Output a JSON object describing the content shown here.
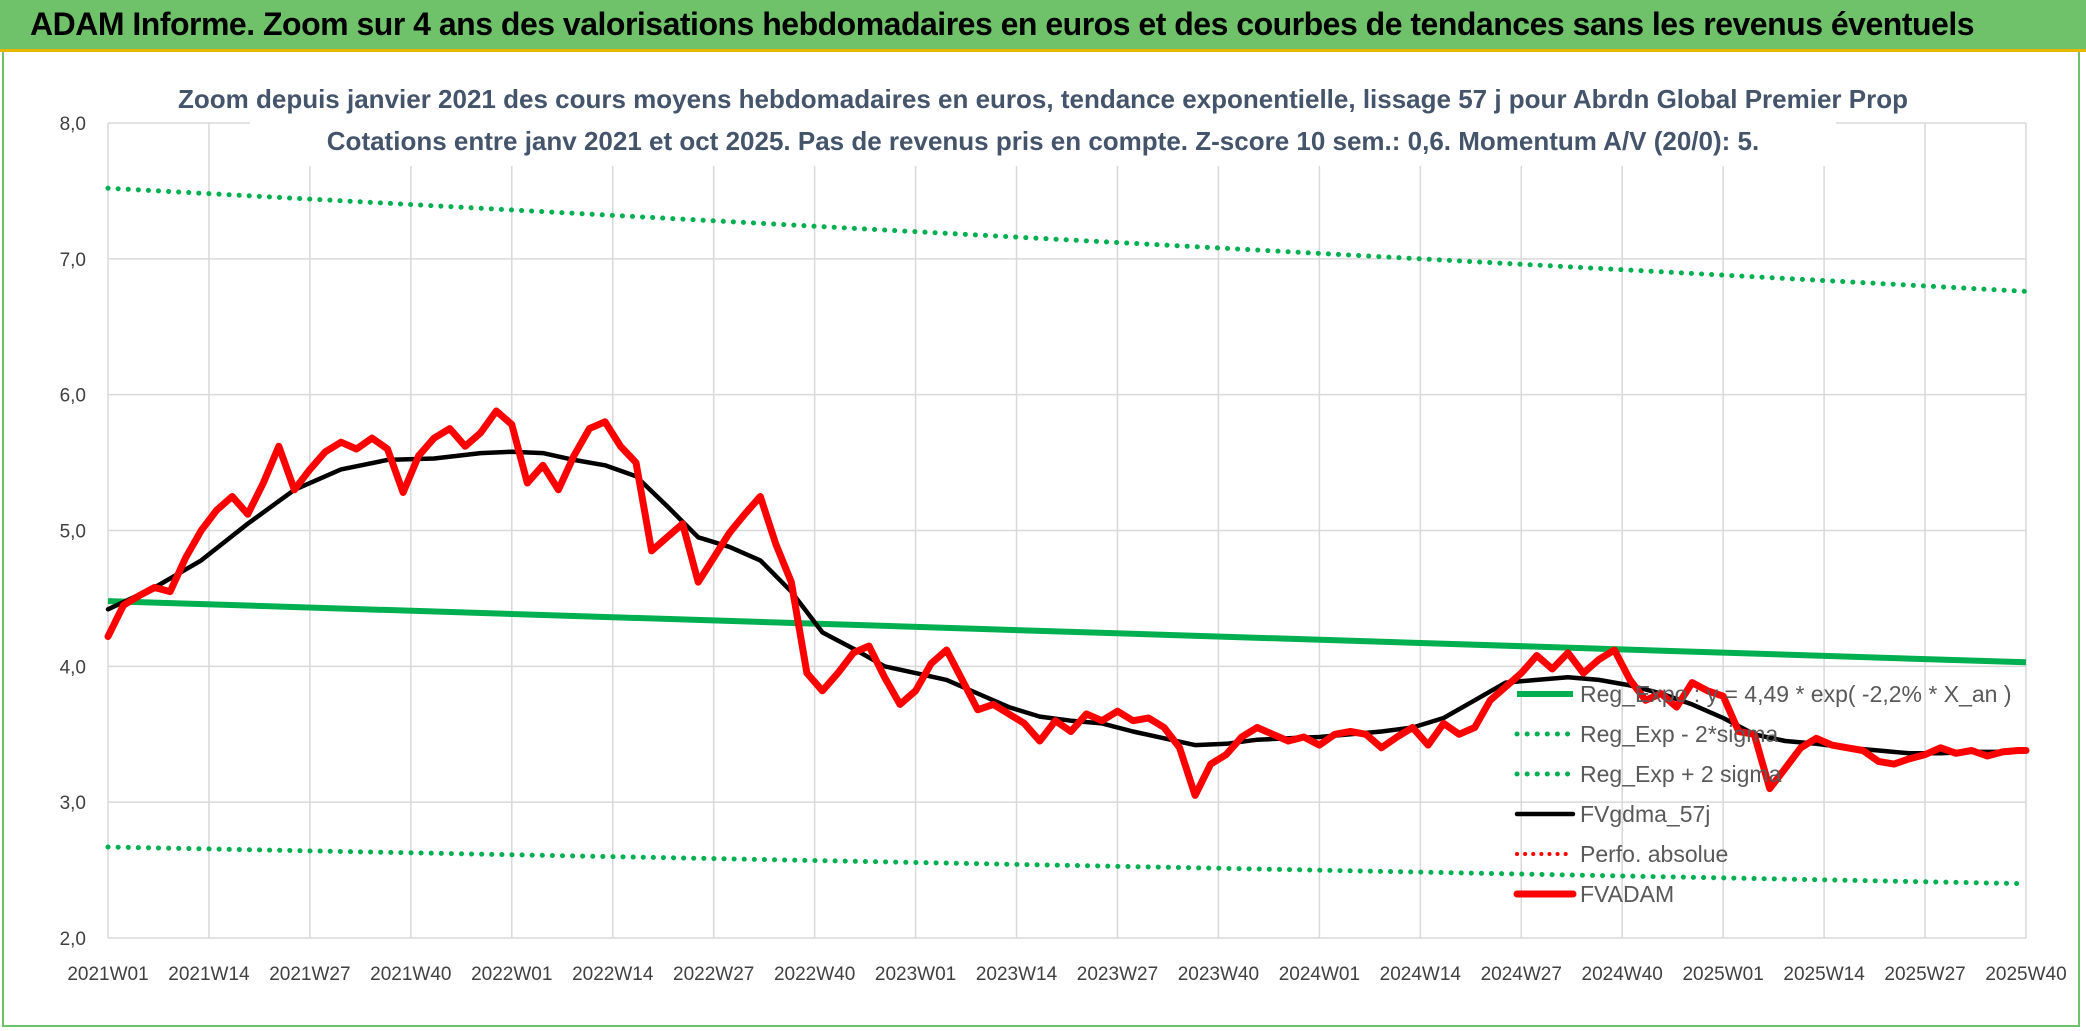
{
  "banner": {
    "title": "ADAM Informe. Zoom sur 4 ans des valorisations hebdomadaires en euros et des courbes de tendances sans les revenus éventuels"
  },
  "colors": {
    "banner_bg": "#6fc26a",
    "banner_border": "#e8b800",
    "trend": "#00b050",
    "gdma": "#000000",
    "price": "#ff0000",
    "grid": "#d9d9d9"
  },
  "chart_data": {
    "type": "line",
    "title_lines": [
      "Zoom depuis janvier 2021 des cours moyens hebdomadaires en euros, tendance exponentielle, lissage 57 j pour Abrdn Global Premier Prop",
      "Cotations entre janv 2021 et oct 2025. Pas de revenus pris en compte. Z-score 10 sem.: 0,6. Momentum A/V (20/0): 5."
    ],
    "ylim": [
      2.0,
      8.0
    ],
    "y_ticks": [
      2.0,
      3.0,
      4.0,
      5.0,
      6.0,
      7.0,
      8.0
    ],
    "y_tick_labels": [
      "2,0",
      "3,0",
      "4,0",
      "5,0",
      "6,0",
      "7,0",
      "8,0"
    ],
    "xlim": [
      0,
      247
    ],
    "x_tick_positions": [
      0,
      13,
      26,
      39,
      52,
      65,
      78,
      91,
      104,
      117,
      130,
      143,
      156,
      169,
      182,
      195,
      208,
      221,
      234,
      247
    ],
    "x_tick_labels": [
      "2021W01",
      "2021W14",
      "2021W27",
      "2021W40",
      "2022W01",
      "2022W14",
      "2022W27",
      "2022W40",
      "2023W01",
      "2023W14",
      "2023W27",
      "2023W40",
      "2024W01",
      "2024W14",
      "2024W27",
      "2024W40",
      "2025W01",
      "2025W14",
      "2025W27",
      "2025W40"
    ],
    "series": [
      {
        "name": "Reg_Expo : y = 4,49 * exp( -2,2% *  X_an )",
        "style": "solid-green",
        "x": [
          0,
          247
        ],
        "y": [
          4.48,
          4.03
        ]
      },
      {
        "name": "Reg_Exp - 2*sigma",
        "style": "dotted-green",
        "x": [
          0,
          247
        ],
        "y": [
          2.67,
          2.4
        ]
      },
      {
        "name": "Reg_Exp + 2 sigma",
        "style": "dotted-green",
        "x": [
          0,
          247
        ],
        "y": [
          7.52,
          6.76
        ]
      },
      {
        "name": "FVgdma_57j",
        "style": "solid-black",
        "x": [
          0,
          6,
          12,
          18,
          24,
          30,
          36,
          42,
          48,
          52,
          56,
          60,
          64,
          68,
          72,
          76,
          80,
          84,
          88,
          92,
          96,
          100,
          104,
          108,
          112,
          116,
          120,
          124,
          128,
          132,
          136,
          140,
          144,
          148,
          152,
          156,
          160,
          164,
          168,
          172,
          176,
          180,
          184,
          188,
          192,
          196,
          200,
          204,
          208,
          212,
          216,
          220,
          224,
          228,
          232,
          236,
          240,
          244,
          247
        ],
        "y": [
          4.42,
          4.58,
          4.78,
          5.05,
          5.3,
          5.45,
          5.52,
          5.53,
          5.57,
          5.58,
          5.57,
          5.52,
          5.48,
          5.4,
          5.18,
          4.95,
          4.88,
          4.78,
          4.55,
          4.25,
          4.13,
          4.0,
          3.95,
          3.9,
          3.8,
          3.7,
          3.63,
          3.6,
          3.58,
          3.52,
          3.47,
          3.42,
          3.43,
          3.46,
          3.47,
          3.48,
          3.5,
          3.52,
          3.55,
          3.62,
          3.75,
          3.88,
          3.9,
          3.92,
          3.9,
          3.86,
          3.8,
          3.72,
          3.62,
          3.5,
          3.45,
          3.43,
          3.4,
          3.38,
          3.36,
          3.36,
          3.37,
          3.37,
          3.38
        ]
      },
      {
        "name": "Perfo. absolue",
        "style": "dotted-red",
        "x": [],
        "y": []
      },
      {
        "name": "FVADAM",
        "style": "solid-red-thick",
        "x": [
          0,
          2,
          4,
          6,
          8,
          10,
          12,
          14,
          16,
          18,
          20,
          22,
          24,
          26,
          28,
          30,
          32,
          34,
          36,
          38,
          40,
          42,
          44,
          46,
          48,
          50,
          52,
          54,
          56,
          58,
          60,
          62,
          64,
          66,
          68,
          70,
          72,
          74,
          76,
          78,
          80,
          82,
          84,
          86,
          88,
          90,
          92,
          94,
          96,
          98,
          100,
          102,
          104,
          106,
          108,
          110,
          112,
          114,
          116,
          118,
          120,
          122,
          124,
          126,
          128,
          130,
          132,
          134,
          136,
          138,
          140,
          142,
          144,
          146,
          148,
          150,
          152,
          154,
          156,
          158,
          160,
          162,
          164,
          166,
          168,
          170,
          172,
          174,
          176,
          178,
          180,
          182,
          184,
          186,
          188,
          190,
          192,
          194,
          196,
          198,
          200,
          202,
          204,
          206,
          208,
          210,
          212,
          214,
          216,
          218,
          220,
          222,
          224,
          226,
          228,
          230,
          232,
          234,
          236,
          238,
          240,
          242,
          244,
          246,
          247
        ],
        "y": [
          4.22,
          4.45,
          4.52,
          4.58,
          4.55,
          4.8,
          5.0,
          5.15,
          5.25,
          5.12,
          5.35,
          5.62,
          5.3,
          5.45,
          5.58,
          5.65,
          5.6,
          5.68,
          5.6,
          5.28,
          5.55,
          5.68,
          5.75,
          5.62,
          5.72,
          5.88,
          5.78,
          5.35,
          5.48,
          5.3,
          5.55,
          5.75,
          5.8,
          5.62,
          5.5,
          4.85,
          4.95,
          5.05,
          4.62,
          4.8,
          4.98,
          5.12,
          5.25,
          4.9,
          4.62,
          3.95,
          3.82,
          3.95,
          4.1,
          4.15,
          3.92,
          3.72,
          3.82,
          4.02,
          4.12,
          3.9,
          3.68,
          3.72,
          3.65,
          3.58,
          3.45,
          3.6,
          3.52,
          3.65,
          3.6,
          3.67,
          3.6,
          3.62,
          3.55,
          3.4,
          3.05,
          3.28,
          3.35,
          3.48,
          3.55,
          3.5,
          3.45,
          3.48,
          3.42,
          3.5,
          3.52,
          3.5,
          3.4,
          3.48,
          3.55,
          3.42,
          3.58,
          3.5,
          3.55,
          3.75,
          3.85,
          3.95,
          4.08,
          3.98,
          4.1,
          3.95,
          4.05,
          4.12,
          3.9,
          3.75,
          3.8,
          3.7,
          3.88,
          3.82,
          3.78,
          3.52,
          3.5,
          3.1,
          3.25,
          3.4,
          3.47,
          3.42,
          3.4,
          3.38,
          3.3,
          3.28,
          3.32,
          3.35,
          3.4,
          3.36,
          3.38,
          3.34,
          3.37,
          3.38,
          3.38
        ]
      }
    ],
    "legend": [
      {
        "label": "Reg_Expo : y = 4,49 * exp( -2,2% *  X_an )",
        "style": "solid-green"
      },
      {
        "label": "Reg_Exp - 2*sigma",
        "style": "dotted-green"
      },
      {
        "label": "Reg_Exp + 2 sigma",
        "style": "dotted-green"
      },
      {
        "label": "FVgdma_57j",
        "style": "solid-black"
      },
      {
        "label": "Perfo. absolue",
        "style": "dotted-red"
      },
      {
        "label": "FVADAM",
        "style": "solid-red-thick"
      }
    ],
    "legend_position": "bottom-right (overlapping plot)",
    "grid": true
  }
}
